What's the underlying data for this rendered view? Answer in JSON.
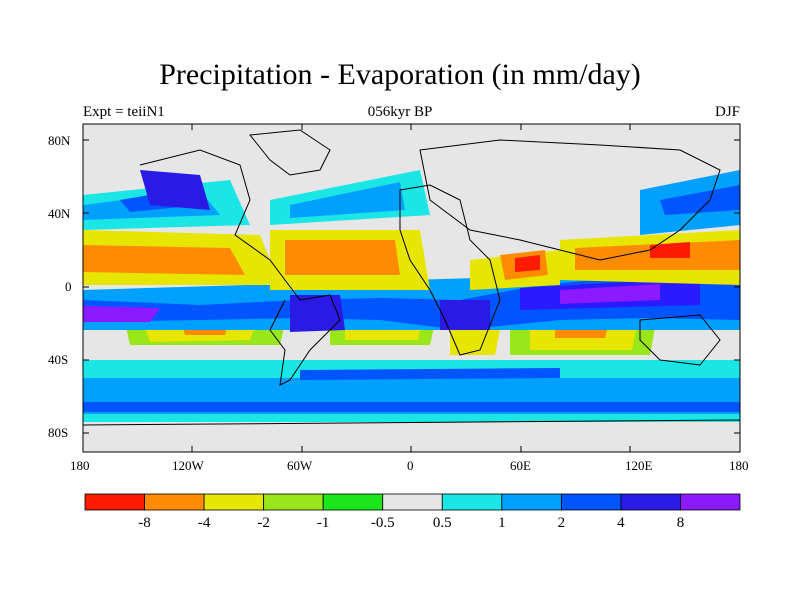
{
  "title": "Precipitation - Evaporation (in mm/day)",
  "left_label": "Expt = teiiN1",
  "center_label": "056kyr BP",
  "right_label": "DJF",
  "lat_ticks": [
    "80N",
    "40N",
    "0",
    "40S",
    "80S"
  ],
  "lon_ticks": [
    "180",
    "120W",
    "60W",
    "0",
    "60E",
    "120E",
    "180"
  ],
  "colorbar": {
    "colors": [
      "#ff1a00",
      "#ff8c00",
      "#e6e600",
      "#99e61a",
      "#1ae61a",
      "#e6e6e6",
      "#1ae6e6",
      "#00a0ff",
      "#0055ff",
      "#2a1ae6",
      "#8c1aff"
    ],
    "labels": [
      "-8",
      "-4",
      "-2",
      "-1",
      "-0.5",
      "0.5",
      "1",
      "2",
      "4",
      "8"
    ]
  },
  "colors": {
    "land_dry": "#e6e6e6",
    "coast": "#000000"
  }
}
